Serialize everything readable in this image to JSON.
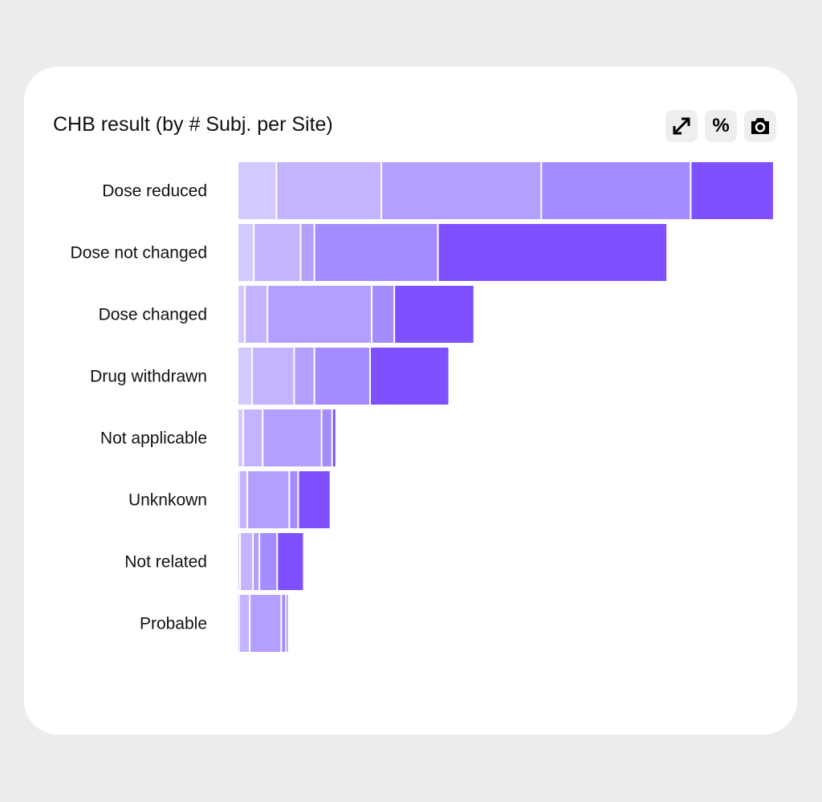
{
  "title": "CHB result (by # Subj. per Site)",
  "toolbar": {
    "icons": [
      "expand-icon",
      "percent-icon",
      "camera-icon"
    ],
    "percent_label": "%"
  },
  "chart_data": {
    "type": "bar",
    "orientation": "horizontal",
    "stacked": true,
    "title": "CHB result (by # Subj. per Site)",
    "categories": [
      "Dose reduced",
      "Dose not changed",
      "Dose changed",
      "Drug withdrawn",
      "Not applicable",
      "Unknkown",
      "Not related",
      "Probable"
    ],
    "segments": [
      [
        48,
        130,
        198,
        185,
        103
      ],
      [
        20,
        58,
        17,
        153,
        284
      ],
      [
        9,
        28,
        129,
        28,
        99
      ],
      [
        18,
        52,
        25,
        69,
        98
      ],
      [
        7,
        24,
        73,
        13,
        5
      ],
      [
        2,
        10,
        52,
        11,
        40
      ],
      [
        3,
        16,
        8,
        22,
        33
      ],
      [
        2,
        13,
        39,
        6,
        3
      ]
    ],
    "colors": [
      "#d2c9ff",
      "#c4b4ff",
      "#b49fff",
      "#a48cff",
      "#7f50ff"
    ],
    "grid": false,
    "legend": "none"
  }
}
